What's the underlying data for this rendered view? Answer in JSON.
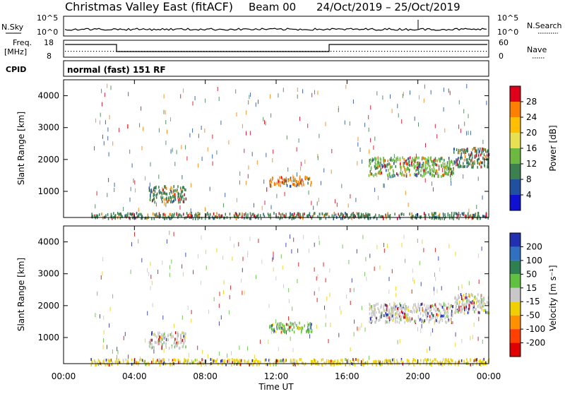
{
  "header": {
    "title": "Christmas Valley East (fitACF)",
    "beam": "Beam 00",
    "date_range": "24/Oct/2019 – 25/Oct/2019"
  },
  "noise_panel": {
    "left_label": "N.Sky",
    "right_label": "N.Search",
    "left_ticks": [
      "10^5",
      "10^0"
    ],
    "right_ticks": [
      "10^5",
      "10^0"
    ]
  },
  "freq_panel": {
    "left_label_1": "Freq.",
    "left_label_2": "[MHz]",
    "left_ticks": [
      "18",
      "8"
    ],
    "right_label": "Nave",
    "right_ticks": [
      "60",
      "0"
    ]
  },
  "cpid": {
    "label": "CPID",
    "mode": "normal (fast) 151 RF"
  },
  "time_axis": {
    "label": "Time UT",
    "ticks": [
      "00:00",
      "04:00",
      "08:00",
      "12:00",
      "16:00",
      "20:00",
      "00:00"
    ]
  },
  "range_axis": {
    "label": "Slant Range [km]",
    "ticks": [
      "1000",
      "2000",
      "3000",
      "4000"
    ]
  },
  "power_colorbar": {
    "label": "Power [dB]",
    "ticks": [
      "28",
      "24",
      "20",
      "16",
      "12",
      "8",
      "4"
    ],
    "colors": [
      "#e0001a",
      "#ff7f00",
      "#ffbf00",
      "#e8e050",
      "#6cb840",
      "#3c8050",
      "#2050a0",
      "#1010d0"
    ]
  },
  "velocity_colorbar": {
    "label": "Velocity [m s⁻¹]",
    "ticks": [
      "200",
      "100",
      "50",
      "15",
      "-15",
      "-50",
      "-100",
      "-200"
    ],
    "colors": [
      "#2030b0",
      "#3070c0",
      "#2e8050",
      "#60c040",
      "#c8c8c8",
      "#f0d000",
      "#ff9000",
      "#ff4000",
      "#e00000"
    ]
  },
  "chart_data": {
    "type": "heatmap",
    "xlabel": "Time UT",
    "ylabel": "Slant Range [km]",
    "xlim_hours": [
      0,
      24
    ],
    "ylim_km": [
      180,
      4500
    ],
    "power_clusters_km": [
      {
        "t0": 4.8,
        "t1": 6.9,
        "r0": 700,
        "r1": 1200,
        "color": "#3c8050"
      },
      {
        "t0": 11.6,
        "t1": 14.0,
        "r0": 1200,
        "r1": 1500,
        "color": "#ff7f00"
      },
      {
        "t0": 17.2,
        "t1": 22.0,
        "r0": 1500,
        "r1": 2100,
        "color": "#6cb840"
      },
      {
        "t0": 22.0,
        "t1": 24.0,
        "r0": 1800,
        "r1": 2400,
        "color": "#3c8050"
      },
      {
        "t0": 1.5,
        "t1": 24.0,
        "r0": 180,
        "r1": 360,
        "color": "#3c8050"
      }
    ],
    "velocity_clusters_km": [
      {
        "t0": 4.8,
        "t1": 6.9,
        "r0": 700,
        "r1": 1200,
        "color": "#c8c8c8"
      },
      {
        "t0": 11.6,
        "t1": 14.0,
        "r0": 1200,
        "r1": 1500,
        "color": "#60c040"
      },
      {
        "t0": 17.2,
        "t1": 22.0,
        "r0": 1500,
        "r1": 2100,
        "color": "#c8c8c8"
      },
      {
        "t0": 22.0,
        "t1": 24.0,
        "r0": 1800,
        "r1": 2400,
        "color": "#c8c8c8"
      },
      {
        "t0": 1.5,
        "t1": 24.0,
        "r0": 180,
        "r1": 360,
        "color": "#f0d000"
      }
    ]
  }
}
